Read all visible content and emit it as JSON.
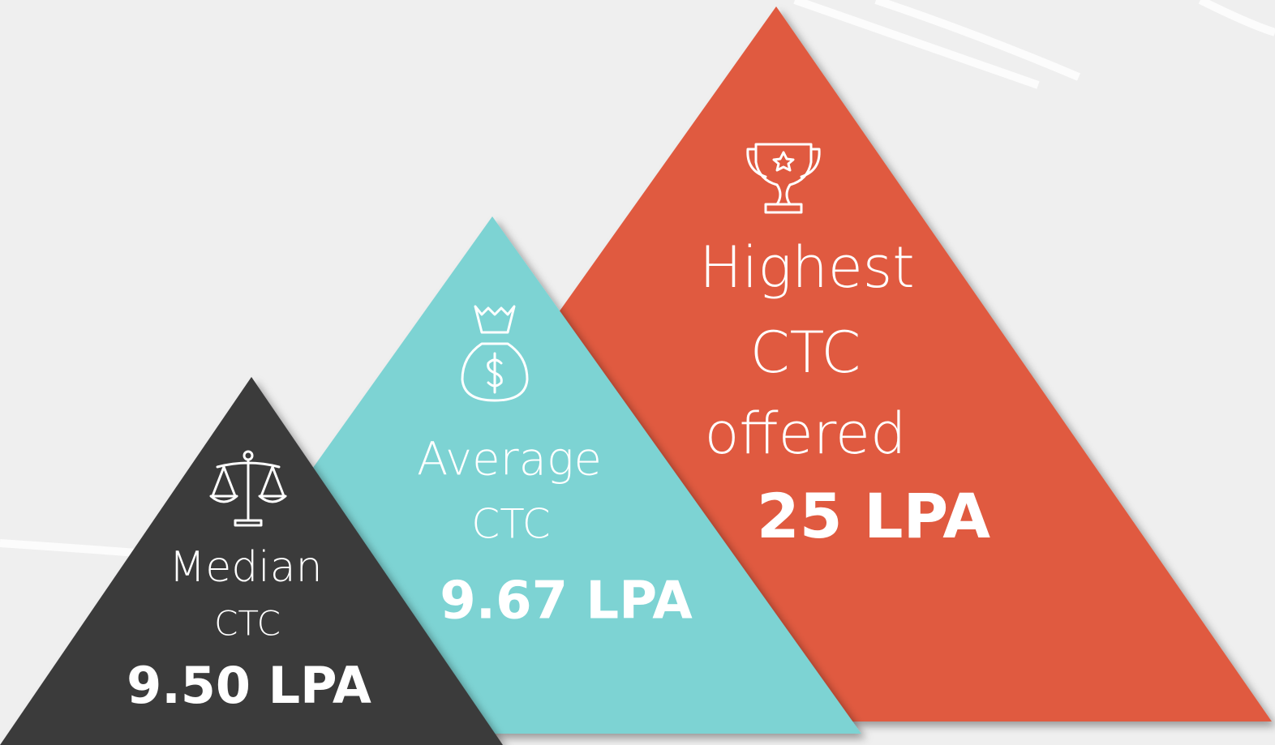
{
  "items": [
    {
      "label": [
        "Median",
        "CTC"
      ],
      "value": "9.50 LPA"
    },
    {
      "label": [
        "Average",
        "CTC"
      ],
      "value": "9.67 LPA"
    },
    {
      "label": [
        "Highest",
        "CTC",
        "offered"
      ],
      "value": "25 LPA"
    }
  ]
}
